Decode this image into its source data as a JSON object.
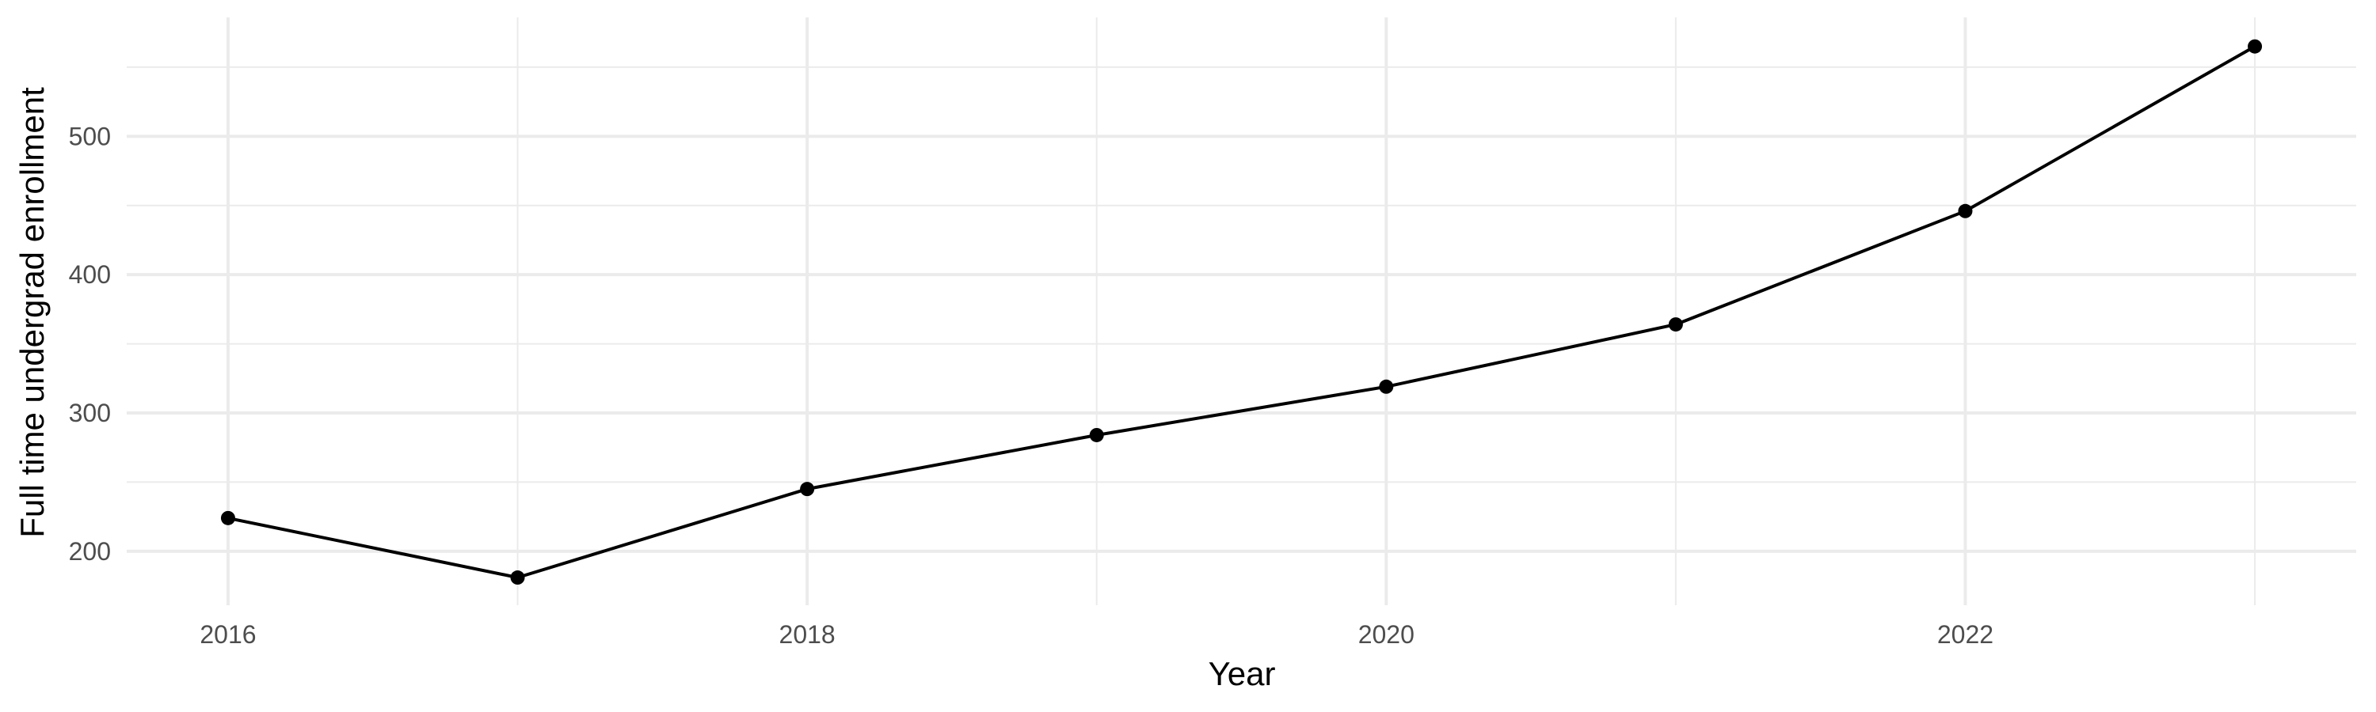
{
  "chart_data": {
    "type": "line",
    "title": "",
    "xlabel": "Year",
    "ylabel": "Full time undergrad enrollment",
    "x": [
      2016,
      2017,
      2018,
      2019,
      2020,
      2021,
      2022,
      2023
    ],
    "series": [
      {
        "values": [
          224,
          181,
          245,
          284,
          319,
          364,
          446,
          565
        ]
      }
    ],
    "x_ticks": [
      2016,
      2018,
      2020,
      2022
    ],
    "x_tick_labels": [
      "2016",
      "2018",
      "2020",
      "2022"
    ],
    "y_ticks": [
      200,
      300,
      400,
      500
    ],
    "y_tick_labels": [
      "200",
      "300",
      "400",
      "500"
    ],
    "xlim": [
      2015.65,
      2023.35
    ],
    "ylim": [
      161,
      586
    ],
    "grid": true,
    "legend": "none",
    "colors": {
      "line": "#000000",
      "point": "#000000",
      "grid": "#ebebeb",
      "background": "#ffffff"
    }
  }
}
